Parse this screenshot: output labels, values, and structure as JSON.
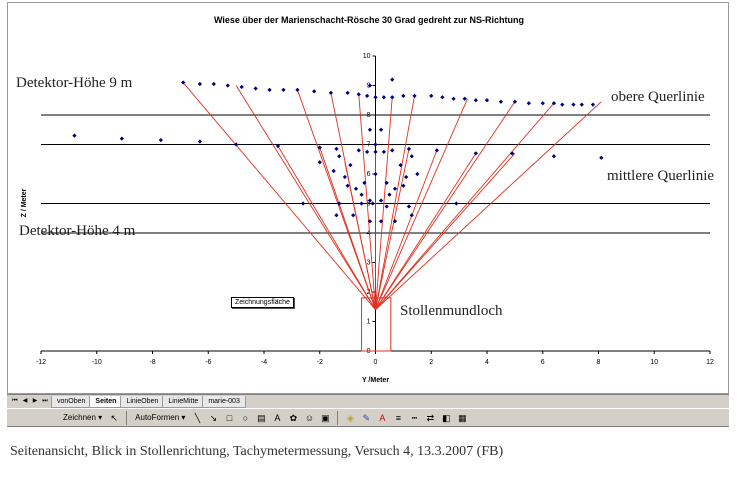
{
  "chart_data": {
    "type": "scatter",
    "title": "Wiese über der Marienschacht-Rösche 30 Grad gedreht zur NS-Richtung",
    "xlabel": "Y /Meter",
    "ylabel": "Z / Meter",
    "xlim": [
      -12,
      12
    ],
    "ylim": [
      0,
      10
    ],
    "x_ticks": [
      "-12",
      "-10",
      "-8",
      "-6",
      "-4",
      "-2",
      "0",
      "2",
      "4",
      "6",
      "8",
      "10",
      "12"
    ],
    "y_ticks": [
      "0",
      "1",
      "2",
      "3",
      "4",
      "5",
      "6",
      "7",
      "8",
      "9",
      "10"
    ],
    "hlines": [
      8,
      7,
      5,
      4
    ],
    "points": [
      [
        -6.9,
        9.1
      ],
      [
        -6.3,
        9.05
      ],
      [
        -5.8,
        9.05
      ],
      [
        -5.3,
        9.0
      ],
      [
        -4.8,
        8.95
      ],
      [
        -4.3,
        8.9
      ],
      [
        -3.8,
        8.85
      ],
      [
        -3.3,
        8.85
      ],
      [
        -2.8,
        8.85
      ],
      [
        -2.2,
        8.8
      ],
      [
        -1.6,
        8.75
      ],
      [
        -1.0,
        8.75
      ],
      [
        -0.6,
        8.7
      ],
      [
        -0.3,
        8.65
      ],
      [
        0.0,
        8.6
      ],
      [
        0.3,
        8.6
      ],
      [
        0.6,
        8.6
      ],
      [
        1.0,
        8.65
      ],
      [
        1.4,
        8.65
      ],
      [
        2.0,
        8.65
      ],
      [
        2.4,
        8.6
      ],
      [
        2.8,
        8.55
      ],
      [
        3.2,
        8.55
      ],
      [
        3.6,
        8.5
      ],
      [
        4.0,
        8.5
      ],
      [
        4.5,
        8.45
      ],
      [
        5.0,
        8.45
      ],
      [
        5.5,
        8.4
      ],
      [
        6.0,
        8.4
      ],
      [
        6.4,
        8.4
      ],
      [
        6.7,
        8.35
      ],
      [
        7.1,
        8.35
      ],
      [
        7.4,
        8.35
      ],
      [
        7.8,
        8.35
      ],
      [
        0.6,
        9.2
      ],
      [
        -0.2,
        9.0
      ],
      [
        -10.8,
        7.3
      ],
      [
        -9.1,
        7.2
      ],
      [
        -7.7,
        7.15
      ],
      [
        -6.3,
        7.1
      ],
      [
        -5.0,
        7.0
      ],
      [
        -3.5,
        6.95
      ],
      [
        -2.0,
        6.9
      ],
      [
        -1.4,
        6.85
      ],
      [
        -0.6,
        6.8
      ],
      [
        -0.3,
        6.75
      ],
      [
        0.0,
        6.75
      ],
      [
        0.3,
        6.75
      ],
      [
        0.6,
        6.8
      ],
      [
        1.2,
        6.85
      ],
      [
        2.2,
        6.8
      ],
      [
        3.6,
        6.7
      ],
      [
        4.9,
        6.7
      ],
      [
        6.4,
        6.6
      ],
      [
        8.1,
        6.55
      ],
      [
        -2.0,
        6.4
      ],
      [
        -1.5,
        6.1
      ],
      [
        -1.0,
        5.6
      ],
      [
        -0.5,
        5.3
      ],
      [
        -0.2,
        5.1
      ],
      [
        0.2,
        5.1
      ],
      [
        0.5,
        5.3
      ],
      [
        1.0,
        5.6
      ],
      [
        1.5,
        6.0
      ],
      [
        -1.3,
        6.6
      ],
      [
        -0.9,
        6.3
      ],
      [
        -0.4,
        5.7
      ],
      [
        0.4,
        5.7
      ],
      [
        0.9,
        6.3
      ],
      [
        1.3,
        6.6
      ],
      [
        -1.1,
        5.9
      ],
      [
        -0.7,
        5.5
      ],
      [
        0.7,
        5.5
      ],
      [
        1.1,
        5.9
      ],
      [
        -2.6,
        5.0
      ],
      [
        2.9,
        5.0
      ],
      [
        -1.3,
        5.0
      ],
      [
        -0.1,
        5.0
      ],
      [
        1.2,
        4.9
      ],
      [
        -1.4,
        4.6
      ],
      [
        -0.8,
        4.6
      ],
      [
        -0.2,
        4.4
      ],
      [
        0.2,
        4.4
      ],
      [
        0.7,
        4.4
      ],
      [
        1.3,
        4.6
      ],
      [
        -0.5,
        5.0
      ],
      [
        0.4,
        4.9
      ],
      [
        0.0,
        6.0
      ],
      [
        0.0,
        7.0
      ],
      [
        -0.2,
        7.5
      ],
      [
        0.2,
        7.5
      ]
    ],
    "origin": [
      0,
      1.4
    ],
    "rays_to": [
      [
        -6.9,
        9.1
      ],
      [
        -5.0,
        9.0
      ],
      [
        -2.8,
        8.85
      ],
      [
        -1.6,
        8.75
      ],
      [
        -0.6,
        8.7
      ],
      [
        0.6,
        8.6
      ],
      [
        1.4,
        8.65
      ],
      [
        3.3,
        8.55
      ],
      [
        5.0,
        8.45
      ],
      [
        6.4,
        8.4
      ],
      [
        8.1,
        8.45
      ],
      [
        -3.5,
        6.95
      ],
      [
        -2.0,
        6.9
      ],
      [
        -1.1,
        6.4
      ],
      [
        0.0,
        6.75
      ],
      [
        1.2,
        6.85
      ],
      [
        2.2,
        6.8
      ],
      [
        3.6,
        6.7
      ],
      [
        5.0,
        6.7
      ]
    ],
    "point_color": "#000080",
    "ray_color": "#e03020"
  },
  "annotations": {
    "detektor_hoch": "Detektor-Höhe 9 m",
    "detektor_tief": "Detektor-Höhe 4 m",
    "obere": "obere Querlinie",
    "mittlere": "mittlere Querlinie",
    "stollen": "Stollenmundloch",
    "zeichnungsflaeche": "Zeichnungsfläche"
  },
  "tabs": {
    "nav": [
      "⏮",
      "◀",
      "▶",
      "⏭"
    ],
    "items": [
      "vonOben",
      "Seiten",
      "LinieOben",
      "LinieMitte",
      "marie-003"
    ],
    "active": 1
  },
  "toolbar": {
    "zeichnen": "Zeichnen ▾",
    "autoformen": "AutoFormen ▾"
  },
  "caption": "Seitenansicht, Blick in Stollenrichtung, Tachymetermessung, Versuch 4, 13.3.2007 (FB)"
}
